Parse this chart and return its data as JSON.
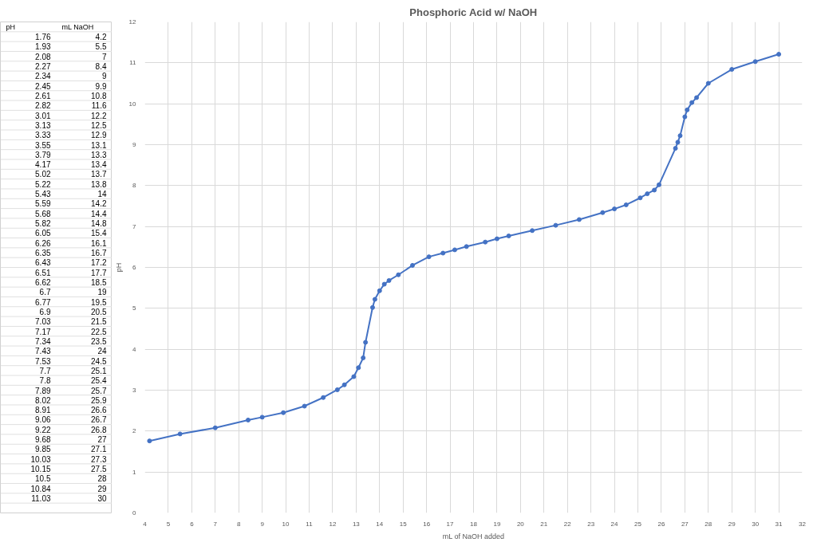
{
  "chart_data": [
    {
      "type": "other",
      "annotations": [
        "pH",
        "mL NaOH",
        "1.76",
        "4.2",
        "1.93",
        "5.5",
        "2.08",
        "7",
        "2.27",
        "8.4",
        "2.34",
        "9",
        "2.45",
        "9.9",
        "2.61",
        "10.8",
        "2.82",
        "11.6",
        "3.01",
        "12.2",
        "3.13",
        "12.5",
        "3.33",
        "12.9",
        "3.55",
        "13.1",
        "3.79",
        "13.3",
        "4.17",
        "13.4",
        "5.02",
        "13.7",
        "5.22",
        "13.8",
        "5.43",
        "14",
        "5.59",
        "14.2",
        "5.68",
        "14.4",
        "5.82",
        "14.8",
        "6.05",
        "15.4",
        "6.26",
        "16.1",
        "6.35",
        "16.7",
        "6.43",
        "17.2",
        "6.51",
        "17.7",
        "6.62",
        "18.5",
        "6.7",
        "19",
        "6.77",
        "19.5",
        "6.9",
        "20.5",
        "7.03",
        "21.5",
        "7.17",
        "22.5",
        "7.34",
        "23.5",
        "7.43",
        "24",
        "7.53",
        "24.5",
        "7.7",
        "25.1",
        "7.8",
        "25.4",
        "7.89",
        "25.7",
        "8.02",
        "25.9",
        "8.91",
        "26.6",
        "9.06",
        "26.7",
        "9.22",
        "26.8",
        "9.68",
        "27",
        "9.85",
        "27.1",
        "10.03",
        "27.3",
        "10.15",
        "27.5",
        "10.5",
        "28",
        "10.84",
        "29",
        "11.03",
        "30"
      ]
    },
    {
      "type": "line",
      "title": "Phosphoric Acid w/ NaOH",
      "xlabel": "mL of NaOH added",
      "ylabel": "pH",
      "x": [
        4.2,
        5.5,
        7,
        8.4,
        9,
        9.9,
        10.8,
        11.6,
        12.2,
        12.5,
        12.9,
        13.1,
        13.3,
        13.4,
        13.7,
        13.8,
        14,
        14.2,
        14.4,
        14.8,
        15.4,
        16.1,
        16.7,
        17.2,
        17.7,
        18.5,
        19,
        19.5,
        20.5,
        21.5,
        22.5,
        23.5,
        24,
        24.5,
        25.1,
        25.4,
        25.7,
        25.9,
        26.6,
        26.7,
        26.8,
        27,
        27.1,
        27.3,
        27.5,
        28,
        29,
        30,
        31
      ],
      "series": [
        {
          "color": "#4472c4",
          "values": [
            1.76,
            1.93,
            2.08,
            2.27,
            2.34,
            2.45,
            2.61,
            2.82,
            3.01,
            3.13,
            3.33,
            3.55,
            3.79,
            4.17,
            5.02,
            5.22,
            5.43,
            5.59,
            5.68,
            5.82,
            6.05,
            6.26,
            6.35,
            6.43,
            6.51,
            6.62,
            6.7,
            6.77,
            6.9,
            7.03,
            7.17,
            7.34,
            7.43,
            7.53,
            7.7,
            7.8,
            7.89,
            8.02,
            8.91,
            9.06,
            9.22,
            9.68,
            9.85,
            10.03,
            10.15,
            10.5,
            10.84,
            11.03,
            11.21
          ]
        }
      ],
      "xlim": [
        4,
        32
      ],
      "xticks": [
        4,
        5,
        6,
        7,
        8,
        9,
        10,
        11,
        12,
        13,
        14,
        15,
        16,
        17,
        18,
        19,
        20,
        21,
        22,
        23,
        24,
        25,
        26,
        27,
        28,
        29,
        30,
        31,
        32
      ],
      "ylim": [
        0,
        12
      ],
      "yticks": [
        0,
        1,
        2,
        3,
        4,
        5,
        6,
        7,
        8,
        9,
        10,
        11,
        12
      ],
      "grid": true,
      "marker": "circle",
      "line_style": "solid"
    }
  ]
}
